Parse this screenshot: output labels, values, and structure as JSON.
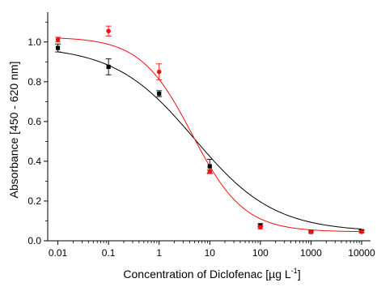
{
  "chart_data": {
    "type": "scatter",
    "xlabel": "Concentration of Diclofenac [µg L",
    "xlabel_unit_sup": "-1",
    "xlabel_close": "]",
    "ylabel": "Absorbance [450 - 620 nm]",
    "xscale": "log",
    "xlim": [
      0.0063,
      15000
    ],
    "ylim": [
      0,
      1.15
    ],
    "grid": false,
    "x_ticks": [
      {
        "value": 0.01,
        "label": "0.01"
      },
      {
        "value": 0.1,
        "label": "0.1"
      },
      {
        "value": 1,
        "label": "1"
      },
      {
        "value": 10,
        "label": "10"
      },
      {
        "value": 100,
        "label": "100"
      },
      {
        "value": 1000,
        "label": "1000"
      },
      {
        "value": 10000,
        "label": "10000"
      }
    ],
    "y_ticks": [
      {
        "value": 0.0,
        "label": "0.0"
      },
      {
        "value": 0.2,
        "label": "0.2"
      },
      {
        "value": 0.4,
        "label": "0.4"
      },
      {
        "value": 0.6,
        "label": "0.6"
      },
      {
        "value": 0.8,
        "label": "0.8"
      },
      {
        "value": 1.0,
        "label": "1.0"
      }
    ],
    "series": [
      {
        "color": "#000000",
        "points": [
          {
            "x": 0.01,
            "y": 0.97,
            "err": 0.02
          },
          {
            "x": 0.1,
            "y": 0.875,
            "err": 0.04
          },
          {
            "x": 1,
            "y": 0.74,
            "err": 0.015
          },
          {
            "x": 10,
            "y": 0.375,
            "err": 0.035
          },
          {
            "x": 100,
            "y": 0.078,
            "err": 0.008
          },
          {
            "x": 1000,
            "y": 0.045,
            "err": 0.004
          },
          {
            "x": 10000,
            "y": 0.048,
            "err": 0.007
          }
        ],
        "fit": {
          "bottom": 0.045,
          "top": 0.98,
          "ec50": 5.0,
          "hill": 0.55
        }
      },
      {
        "color": "#ee1111",
        "points": [
          {
            "x": 0.01,
            "y": 1.012,
            "err": 0.012
          },
          {
            "x": 0.1,
            "y": 1.055,
            "err": 0.025
          },
          {
            "x": 1,
            "y": 0.85,
            "err": 0.04
          },
          {
            "x": 10,
            "y": 0.348,
            "err": 0.01
          },
          {
            "x": 100,
            "y": 0.068,
            "err": 0.008
          },
          {
            "x": 1000,
            "y": 0.045,
            "err": 0.004
          },
          {
            "x": 10000,
            "y": 0.045,
            "err": 0.005
          }
        ],
        "fit": {
          "bottom": 0.045,
          "top": 1.025,
          "ec50": 4.5,
          "hill": 0.85
        }
      }
    ]
  }
}
